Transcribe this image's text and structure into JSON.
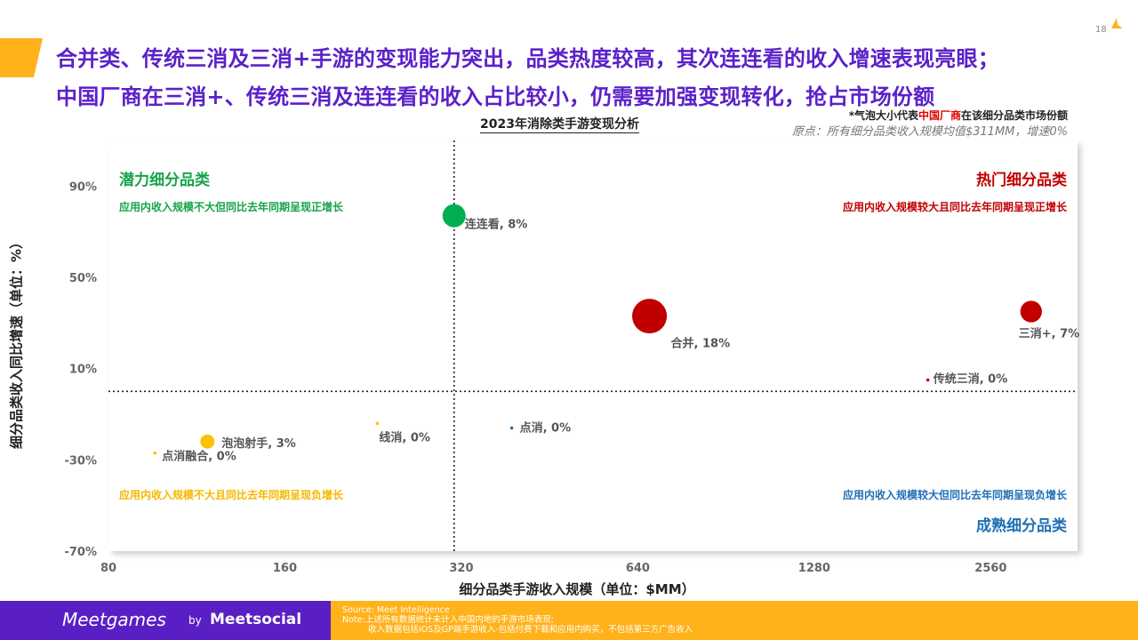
{
  "page": {
    "number": "18"
  },
  "headline": {
    "line1": "合并类、传统三消及三消+手游的变现能力突出，品类热度较高，其次连连看的收入增速表现亮眼；",
    "line2": "中国厂商在三消+、传统三消及连连看的收入占比较小，仍需要加强变现转化，抢占市场份额"
  },
  "notes": {
    "bubble_prefix": "*气泡大小代表",
    "bubble_highlight": "中国厂商",
    "bubble_suffix": "在该细分品类市场份额",
    "origin": "原点：所有细分品类收入规模均值$311MM，增速0%"
  },
  "quadrants": {
    "top_left": {
      "title": "潜力细分品类",
      "desc": "应用内收入规模不大但同比去年同期呈现正增长",
      "color": "#16a34a"
    },
    "top_right": {
      "title": "热门细分品类",
      "desc": "应用内收入规模较大且同比去年同期呈现正增长",
      "color": "#c00000"
    },
    "bottom_left": {
      "desc": "应用内收入规模不大且同比去年同期呈现负增长",
      "color": "#f5b800"
    },
    "bottom_right": {
      "title": "成熟细分品类",
      "desc": "应用内收入规模较大但同比去年同期呈现负增长",
      "color": "#1f6fb5"
    }
  },
  "chart_data": {
    "type": "scatter",
    "title": "2023年消除类手游变现分析",
    "xlabel": "细分品类手游收入规模（单位：$MM）",
    "ylabel": "细分品类收入同比增速（单位：%）",
    "x_scale": "log2",
    "xlim": [
      80,
      3600
    ],
    "ylim": [
      -70,
      110
    ],
    "x_ticks": [
      80,
      160,
      320,
      640,
      1280,
      2560
    ],
    "x_tick_labels": [
      "80",
      "160",
      "320",
      "640",
      "1280",
      "2560"
    ],
    "y_ticks": [
      90,
      50,
      10,
      -30,
      -70
    ],
    "y_tick_labels": [
      "90%",
      "50%",
      "10%",
      "-30%",
      "-70%"
    ],
    "origin": {
      "x": 311,
      "y": 0
    },
    "points": [
      {
        "label": "连连看, 8%",
        "x": 311,
        "y": 77,
        "share": 8,
        "color": "#00b050"
      },
      {
        "label": "合并, 18%",
        "x": 670,
        "y": 33,
        "share": 18,
        "color": "#c00000"
      },
      {
        "label": "三消+, 7%",
        "x": 3000,
        "y": 35,
        "share": 7,
        "color": "#c00000"
      },
      {
        "label": "传统三消, 0%",
        "x": 2000,
        "y": 5,
        "share": 0,
        "color": "#c00000"
      },
      {
        "label": "泡泡射手, 3%",
        "x": 118,
        "y": -22,
        "share": 3,
        "color": "#ffc000"
      },
      {
        "label": "点消融合, 0%",
        "x": 96,
        "y": -27,
        "share": 0,
        "color": "#ffc000"
      },
      {
        "label": "线消, 0%",
        "x": 230,
        "y": -14,
        "share": 0,
        "color": "#ffc000"
      },
      {
        "label": "点消, 0%",
        "x": 390,
        "y": -16,
        "share": 0,
        "color": "#1f6fb5"
      }
    ]
  },
  "footer": {
    "brand": "Meetgames",
    "by": "by",
    "brand2": "Meetsocial",
    "source": "Source: Meet Intelligence",
    "note": "Note:上述所有数据统计未计入中国内地的手游市场表现;",
    "note2": "收入数据包括iOS及GP端手游收入-包括付费下载和应用内购买，不包括第三方广告收入"
  }
}
